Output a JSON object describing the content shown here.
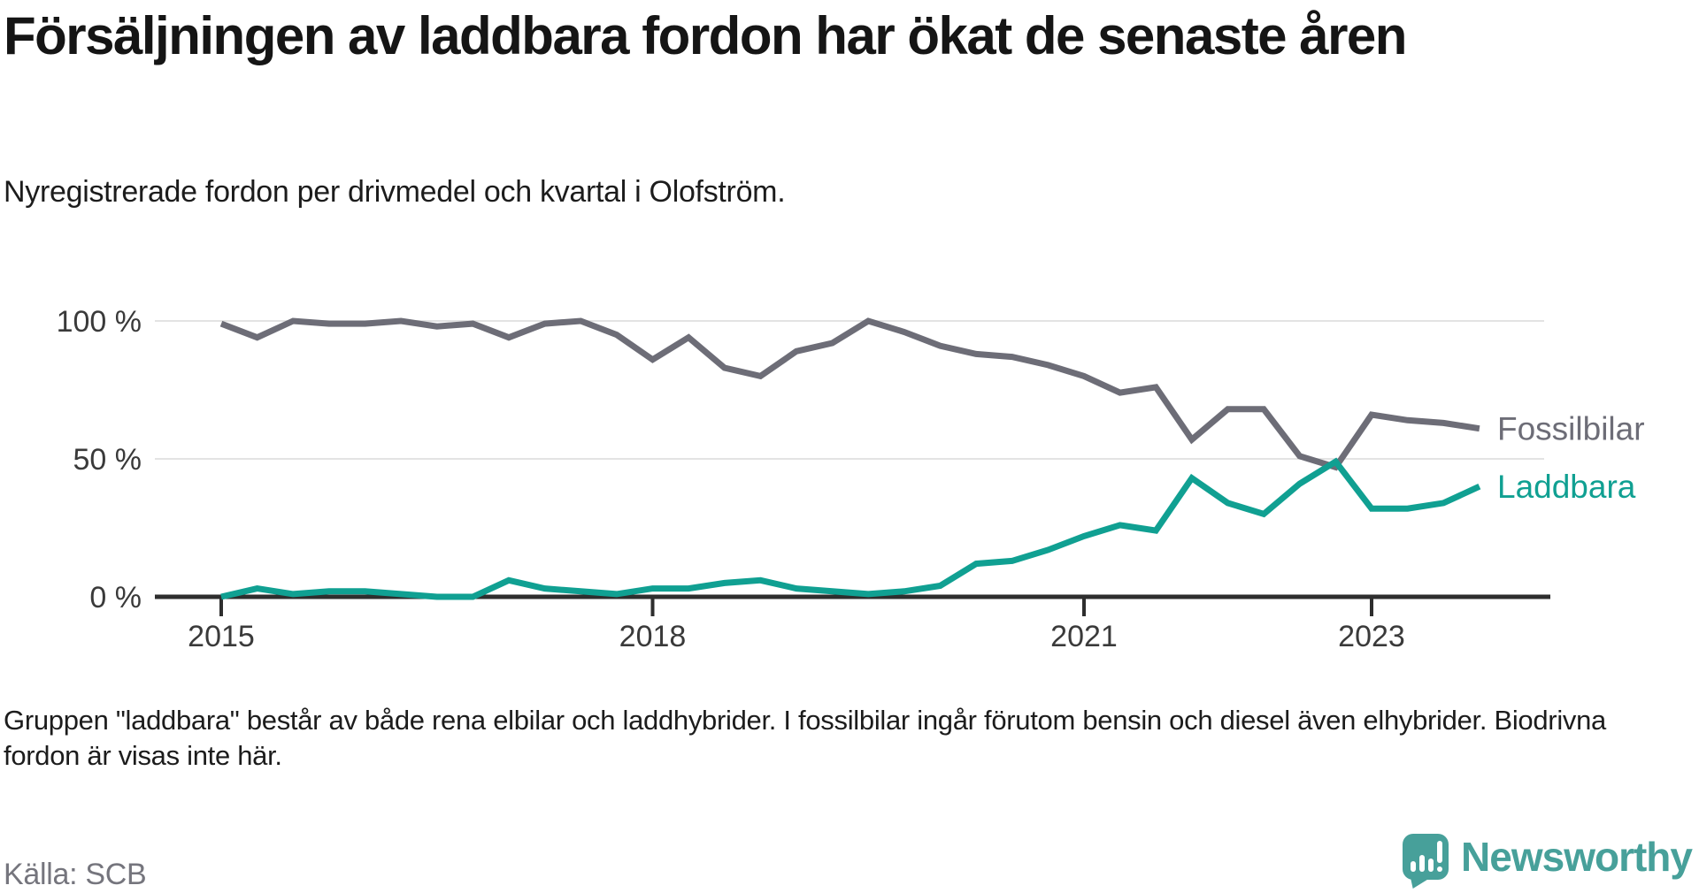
{
  "title": "Försäljningen av laddbara fordon har ökat de senaste åren",
  "subtitle": "Nyregistrerade fordon per drivmedel och kvartal i Olofström.",
  "footnote": "Gruppen \"laddbara\" består av både rena elbilar och laddhybrider. I fossilbilar ingår förutom bensin och diesel även elhybrider. Biodrivna fordon är visas inte här.",
  "source": "Källa: SCB",
  "branding": {
    "logo_text": "Newsworthy",
    "logo_icon": "newsworthy-speech-bubble-chart-icon",
    "brand_color": "#47a09a"
  },
  "colors": {
    "background": "#ffffff",
    "title_text": "#151515",
    "body_text": "#1c1c1c",
    "muted_text": "#75757d",
    "axis": "#2e2e2e",
    "gridline": "#e3e3e3",
    "fossil_gray": "#6d6d77",
    "laddbara_teal": "#10a092"
  },
  "chart_data": {
    "type": "line",
    "title": "Försäljningen av laddbara fordon har ökat de senaste åren",
    "subtitle": "Nyregistrerade fordon per drivmedel och kvartal i Olofström",
    "unit": "%",
    "ylim": [
      0,
      100
    ],
    "grid": "horizontal",
    "legend": "line-end-labels",
    "y_ticks": [
      {
        "value": 0,
        "label": "0 %"
      },
      {
        "value": 50,
        "label": "50 %"
      },
      {
        "value": 100,
        "label": "100 %"
      }
    ],
    "x_ticks": [
      {
        "index": 0,
        "label": "2015"
      },
      {
        "index": 12,
        "label": "2018"
      },
      {
        "index": 24,
        "label": "2021"
      },
      {
        "index": 32,
        "label": "2023"
      }
    ],
    "categories": [
      "2015-Q1",
      "2015-Q2",
      "2015-Q3",
      "2015-Q4",
      "2016-Q1",
      "2016-Q2",
      "2016-Q3",
      "2016-Q4",
      "2017-Q1",
      "2017-Q2",
      "2017-Q3",
      "2017-Q4",
      "2018-Q1",
      "2018-Q2",
      "2018-Q3",
      "2018-Q4",
      "2019-Q1",
      "2019-Q2",
      "2019-Q3",
      "2019-Q4",
      "2020-Q1",
      "2020-Q2",
      "2020-Q3",
      "2020-Q4",
      "2021-Q1",
      "2021-Q2",
      "2021-Q3",
      "2021-Q4",
      "2022-Q1",
      "2022-Q2",
      "2022-Q3",
      "2022-Q4",
      "2023-Q1",
      "2023-Q2",
      "2023-Q3",
      "2023-Q4"
    ],
    "series": [
      {
        "name": "Fossilbilar",
        "color": "#6d6d77",
        "values": [
          99,
          94,
          100,
          99,
          99,
          100,
          98,
          99,
          94,
          99,
          100,
          95,
          86,
          94,
          83,
          80,
          89,
          92,
          100,
          96,
          91,
          88,
          87,
          84,
          80,
          74,
          76,
          57,
          68,
          68,
          51,
          47,
          66,
          64,
          63,
          61
        ]
      },
      {
        "name": "Laddbara",
        "color": "#10a092",
        "values": [
          0,
          3,
          1,
          2,
          2,
          1,
          0,
          0,
          6,
          3,
          2,
          1,
          3,
          3,
          5,
          6,
          3,
          2,
          1,
          2,
          4,
          12,
          13,
          17,
          22,
          26,
          24,
          43,
          34,
          30,
          41,
          49,
          32,
          32,
          34,
          40
        ]
      }
    ]
  }
}
